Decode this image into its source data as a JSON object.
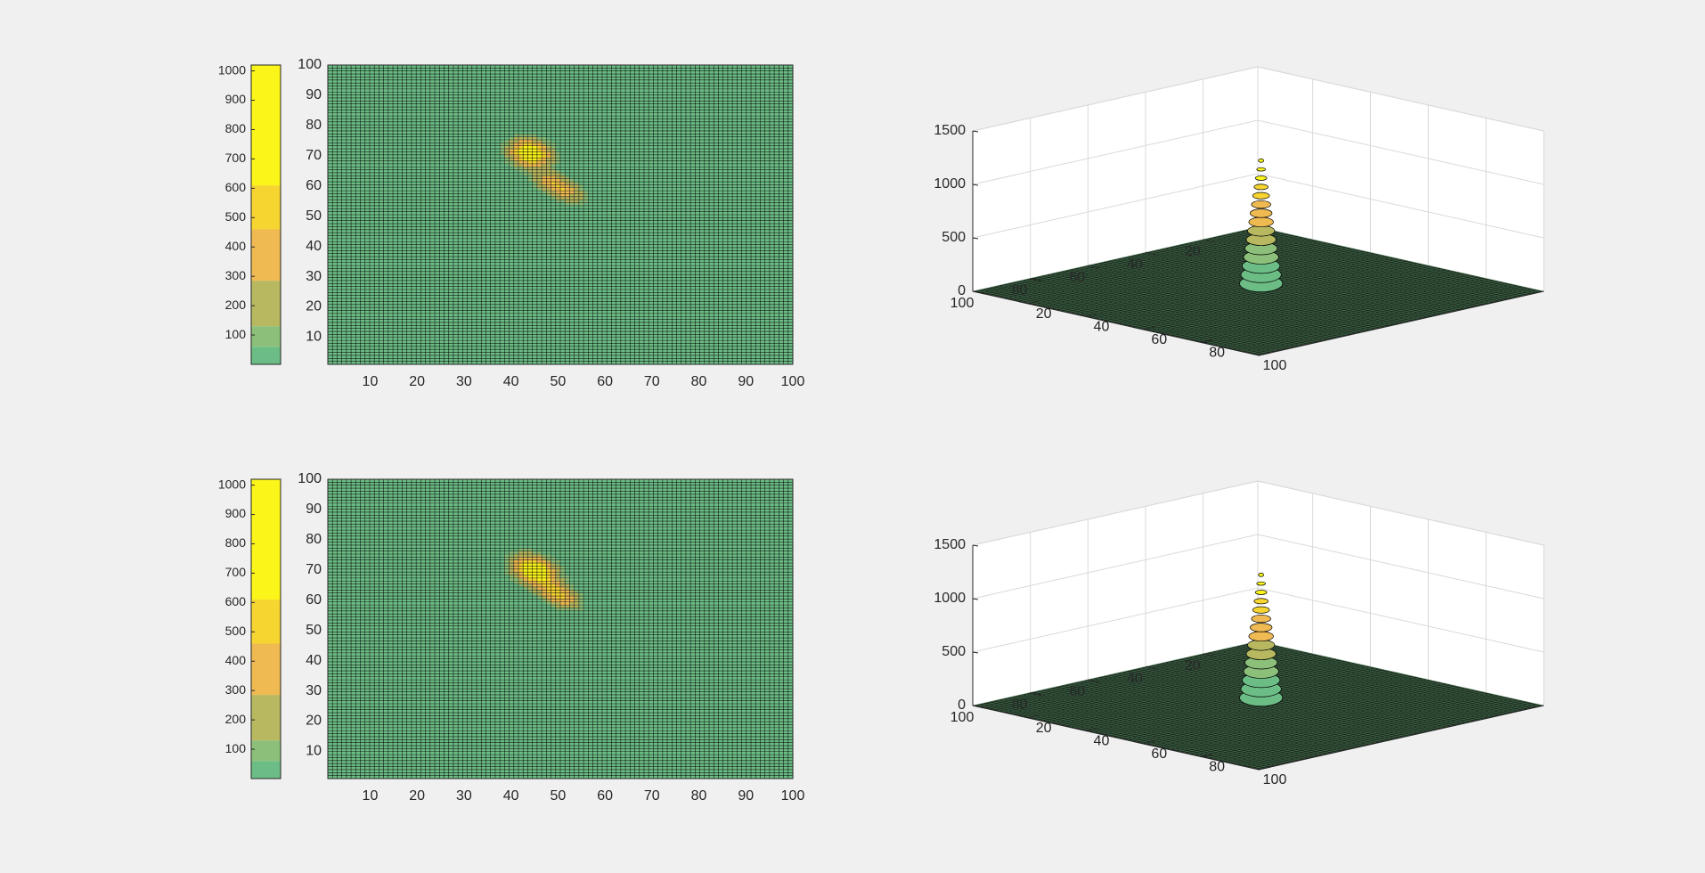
{
  "figure": {
    "background": "#f0f0f0"
  },
  "colors": {
    "mesh_line": "#000000",
    "grid_3d": "#d9d9d9",
    "axis": "#262626",
    "colormap": [
      "#6cbd85",
      "#8cc07a",
      "#b7b860",
      "#efba52",
      "#f7d531",
      "#fbf51a"
    ]
  },
  "chart_data": [
    {
      "type": "heatmap",
      "panel": "top-left",
      "xlim": [
        1,
        100
      ],
      "ylim": [
        1,
        100
      ],
      "xticks": [
        10,
        20,
        30,
        40,
        50,
        60,
        70,
        80,
        90,
        100
      ],
      "yticks": [
        10,
        20,
        30,
        40,
        50,
        60,
        70,
        80,
        90,
        100
      ],
      "colorbar": {
        "ticks": [
          100,
          200,
          300,
          400,
          500,
          600,
          700,
          800,
          900,
          1000
        ],
        "clim": [
          0,
          1020
        ],
        "levels": [
          {
            "from": 0,
            "to": 60,
            "color": "#6cbd85"
          },
          {
            "from": 60,
            "to": 130,
            "color": "#8cc07a"
          },
          {
            "from": 130,
            "to": 285,
            "color": "#b7b860"
          },
          {
            "from": 285,
            "to": 460,
            "color": "#efba52"
          },
          {
            "from": 460,
            "to": 610,
            "color": "#f7d531"
          },
          {
            "from": 610,
            "to": 1020,
            "color": "#fbf51a"
          }
        ]
      },
      "peaks": [
        {
          "x": 44,
          "y": 71,
          "amplitude": 1,
          "sx": 3,
          "sy": 2.5,
          "rotation_deg": -50
        },
        {
          "x": 50,
          "y": 60,
          "amplitude": 0.55,
          "sx": 4,
          "sy": 2,
          "rotation_deg": -45
        }
      ]
    },
    {
      "type": "surface",
      "panel": "top-right",
      "xlim": [
        1,
        100
      ],
      "ylim": [
        1,
        100
      ],
      "zlim": [
        0,
        1500
      ],
      "xticks": [
        20,
        40,
        60,
        80,
        100
      ],
      "yticks": [
        20,
        40,
        60,
        80,
        100
      ],
      "zticks": [
        0,
        500,
        1000,
        1500
      ],
      "peak": {
        "x": 45,
        "y": 44,
        "z": 1150
      }
    },
    {
      "type": "heatmap",
      "panel": "bottom-left",
      "xlim": [
        1,
        100
      ],
      "ylim": [
        1,
        100
      ],
      "xticks": [
        10,
        20,
        30,
        40,
        50,
        60,
        70,
        80,
        90,
        100
      ],
      "yticks": [
        10,
        20,
        30,
        40,
        50,
        60,
        70,
        80,
        90,
        100
      ],
      "colorbar": {
        "ticks": [
          100,
          200,
          300,
          400,
          500,
          600,
          700,
          800,
          900,
          1000
        ],
        "clim": [
          0,
          1020
        ],
        "levels": [
          {
            "from": 0,
            "to": 60,
            "color": "#6cbd85"
          },
          {
            "from": 60,
            "to": 130,
            "color": "#8cc07a"
          },
          {
            "from": 130,
            "to": 285,
            "color": "#b7b860"
          },
          {
            "from": 285,
            "to": 460,
            "color": "#efba52"
          },
          {
            "from": 460,
            "to": 610,
            "color": "#f7d531"
          },
          {
            "from": 610,
            "to": 1020,
            "color": "#fbf51a"
          }
        ]
      },
      "peaks": [
        {
          "x": 45,
          "y": 70,
          "amplitude": 1,
          "sx": 3.5,
          "sy": 2.5,
          "rotation_deg": -50
        },
        {
          "x": 50,
          "y": 62,
          "amplitude": 0.6,
          "sx": 3.5,
          "sy": 2,
          "rotation_deg": -45
        }
      ]
    },
    {
      "type": "surface",
      "panel": "bottom-right",
      "xlim": [
        1,
        100
      ],
      "ylim": [
        1,
        100
      ],
      "zlim": [
        0,
        1500
      ],
      "xticks": [
        20,
        40,
        60,
        80,
        100
      ],
      "yticks": [
        20,
        40,
        60,
        80,
        100
      ],
      "zticks": [
        0,
        500,
        1000,
        1500
      ],
      "peak": {
        "x": 45,
        "y": 44,
        "z": 1150
      }
    }
  ]
}
